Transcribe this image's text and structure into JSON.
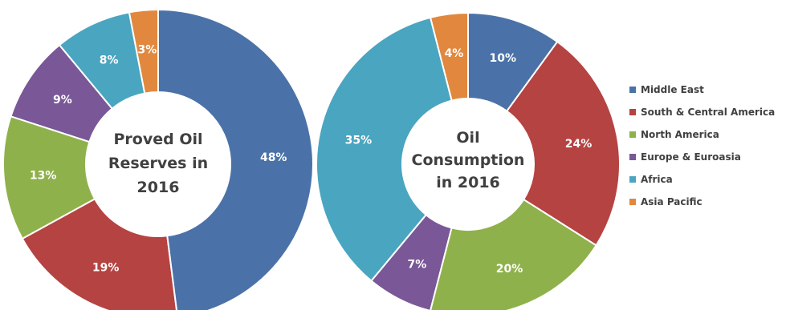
{
  "legend": {
    "items": [
      {
        "label": "Middle East",
        "color": "#4a72a8"
      },
      {
        "label": "South & Central America",
        "color": "#b54341"
      },
      {
        "label": "North America",
        "color": "#8fb14c"
      },
      {
        "label": "Europe & Euroasia",
        "color": "#7a5796"
      },
      {
        "label": "Africa",
        "color": "#4aa5c0"
      },
      {
        "label": "Asia Pacific",
        "color": "#e1883e"
      }
    ]
  },
  "chart_data": [
    {
      "type": "pie",
      "donut": true,
      "center_text": [
        "Proved Oil",
        "Reserves in",
        "2016"
      ],
      "categories": [
        "Middle East",
        "South & Central America",
        "North America",
        "Europe & Euroasia",
        "Africa",
        "Asia Pacific"
      ],
      "values": [
        48,
        19,
        13,
        9,
        8,
        3
      ],
      "value_labels": [
        "48%",
        "19%",
        "13%",
        "9%",
        "8%",
        "3%"
      ],
      "colors": [
        "#4a72a8",
        "#b54341",
        "#8fb14c",
        "#7a5796",
        "#4aa5c0",
        "#e1883e"
      ],
      "legend_position": "right"
    },
    {
      "type": "pie",
      "donut": true,
      "center_text": [
        "Oil",
        "Consumption",
        "in 2016"
      ],
      "categories": [
        "Middle East",
        "South & Central America",
        "North America",
        "Europe & Euroasia",
        "Africa",
        "Asia Pacific"
      ],
      "values": [
        10,
        24,
        20,
        7,
        35,
        4
      ],
      "value_labels": [
        "10%",
        "24%",
        "20%",
        "7%",
        "35%",
        "4%"
      ],
      "colors": [
        "#4a72a8",
        "#b54341",
        "#8fb14c",
        "#7a5796",
        "#4aa5c0",
        "#e1883e"
      ],
      "legend_position": "right"
    }
  ]
}
